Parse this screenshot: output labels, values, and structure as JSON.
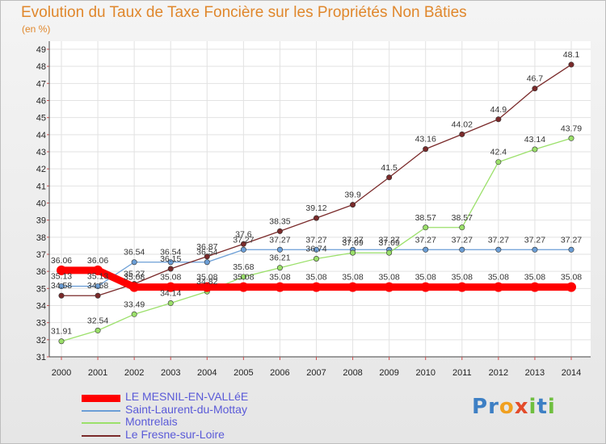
{
  "title": "Evolution du Taux de Taxe Foncière sur les Propriétés Non Bâties",
  "subtitle": "(en %)",
  "logo": {
    "text": "Proxiti",
    "letters": [
      "P",
      "r",
      "o",
      "x",
      "i",
      "t",
      "i"
    ],
    "colors": [
      "#3d7fc4",
      "#3d7fc4",
      "#f0a020",
      "#e34b2a",
      "#6fbf3f",
      "#3d7fc4",
      "#6fbf3f"
    ]
  },
  "chart_data": {
    "type": "line",
    "title": "Evolution du Taux de Taxe Foncière sur les Propriétés Non Bâties",
    "ylabel": "(en %)",
    "x": [
      2000,
      2001,
      2002,
      2003,
      2004,
      2005,
      2006,
      2007,
      2008,
      2009,
      2010,
      2011,
      2012,
      2013,
      2014
    ],
    "ylim": [
      31,
      49
    ],
    "yticks": [
      31,
      32,
      33,
      34,
      35,
      36,
      37,
      38,
      39,
      40,
      41,
      42,
      43,
      44,
      45,
      46,
      47,
      48,
      49
    ],
    "grid": true,
    "legend_position": "bottom-left",
    "series": [
      {
        "name": "LE MESNIL-EN-VALLéE",
        "color": "#ff0000",
        "width": 9,
        "values": [
          36.06,
          36.06,
          35.08,
          35.08,
          35.08,
          35.08,
          35.08,
          35.08,
          35.08,
          35.08,
          35.08,
          35.08,
          35.08,
          35.08,
          35.08
        ],
        "labels": [
          "36.06",
          "36.06",
          "35.08",
          "35.08",
          "35.08",
          "35.08",
          "35.08",
          "35.08",
          "35.08",
          "35.08",
          "35.08",
          "35.08",
          "35.08",
          "35.08",
          "35.08"
        ]
      },
      {
        "name": "Saint-Laurent-du-Mottay",
        "color": "#6b9ed6",
        "width": 1.3,
        "values": [
          35.13,
          35.13,
          36.54,
          36.54,
          36.54,
          37.27,
          37.27,
          37.27,
          37.27,
          37.27,
          37.27,
          37.27,
          37.27,
          37.27,
          37.27
        ],
        "labels": [
          "35.13",
          "35.13",
          "36.54",
          "36.54",
          "36.54",
          "37.27",
          "37.27",
          "37.27",
          "37.27",
          "37.27",
          "37.27",
          "37.27",
          "37.27",
          "37.27",
          "37.27"
        ]
      },
      {
        "name": "Montrelais",
        "color": "#9be06a",
        "width": 1.3,
        "values": [
          31.91,
          32.54,
          33.49,
          34.14,
          34.82,
          35.68,
          36.21,
          36.74,
          37.09,
          37.09,
          38.57,
          38.57,
          42.4,
          43.14,
          43.79
        ],
        "labels": [
          "31.91",
          "32.54",
          "33.49",
          "34.14",
          "34.82",
          "35.68",
          "36.21",
          "36.74",
          "37.09",
          "37.09",
          "38.57",
          "38.57",
          "42.4",
          "43.14",
          "43.79"
        ]
      },
      {
        "name": "Le Fresne-sur-Loire",
        "color": "#7a2a2a",
        "width": 1.3,
        "values": [
          34.58,
          34.58,
          35.27,
          36.15,
          36.87,
          37.6,
          38.35,
          39.12,
          39.9,
          41.5,
          43.16,
          44.02,
          44.9,
          46.7,
          48.1
        ],
        "labels": [
          "34.58",
          "34.58",
          "35.27",
          "36.15",
          "36.87",
          "37.6",
          "38.35",
          "39.12",
          "39.9",
          "41.5",
          "43.16",
          "44.02",
          "44.9",
          "46.7",
          "48.1"
        ]
      }
    ]
  }
}
